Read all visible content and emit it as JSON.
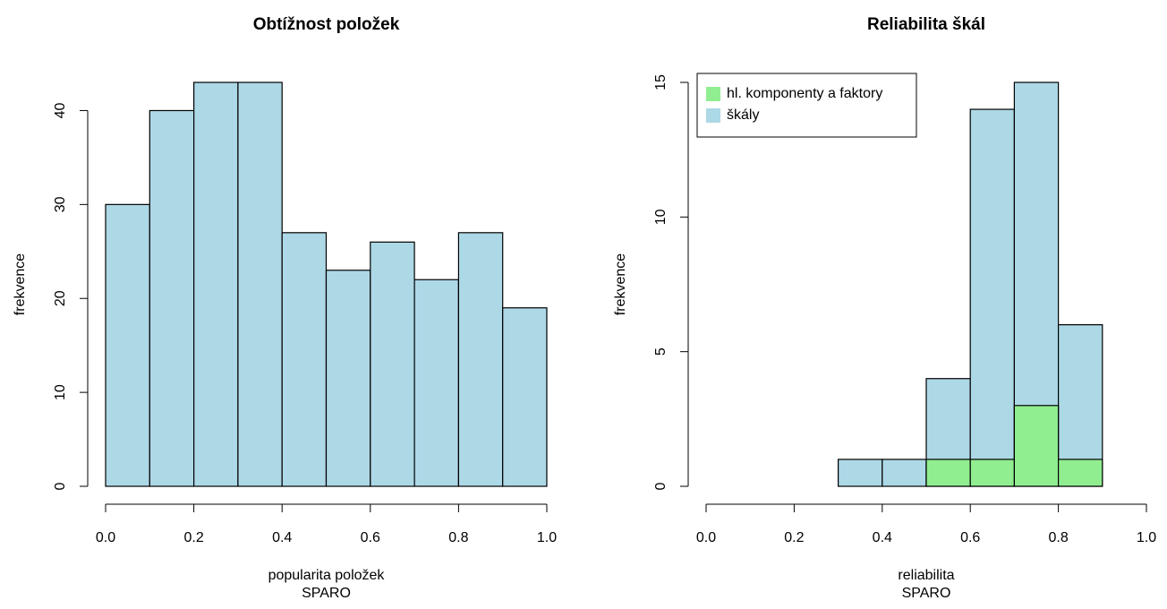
{
  "chart_data": [
    {
      "type": "histogram",
      "title": "Obtížnost položek",
      "xlabel": "popularita položek",
      "subtitle": "SPARO",
      "ylabel": "frekvence",
      "bins": [
        0,
        0.1,
        0.2,
        0.3,
        0.4,
        0.5,
        0.6,
        0.7,
        0.8,
        0.9,
        1.0
      ],
      "series": [
        {
          "name": null,
          "color": "#add8e6",
          "values": [
            30,
            40,
            43,
            43,
            27,
            23,
            26,
            22,
            27,
            19
          ]
        }
      ],
      "xlim": [
        0,
        1
      ],
      "xticks": [
        {
          "value": 0,
          "label": "0.0"
        },
        0.2,
        0.4,
        0.6,
        0.8,
        {
          "value": 1,
          "label": "1.0"
        }
      ],
      "ylim": [
        0,
        43
      ],
      "yticks": [
        0,
        10,
        20,
        30,
        40
      ],
      "legend": null
    },
    {
      "type": "histogram",
      "title": "Reliabilita škál",
      "xlabel": "reliabilita",
      "subtitle": "SPARO",
      "ylabel": "frekvence",
      "bins": [
        0.3,
        0.4,
        0.5,
        0.6,
        0.7,
        0.8,
        0.9
      ],
      "series": [
        {
          "name": "škály",
          "color": "#add8e6",
          "values": [
            1,
            1,
            4,
            14,
            15,
            6
          ]
        },
        {
          "name": "hl. komponenty a faktory",
          "color": "#90ee90",
          "values": [
            0,
            0,
            1,
            1,
            3,
            1
          ]
        }
      ],
      "xlim": [
        0,
        1
      ],
      "xticks": [
        {
          "value": 0,
          "label": "0.0"
        },
        0.2,
        0.4,
        0.6,
        0.8,
        {
          "value": 1,
          "label": "1.0"
        }
      ],
      "ylim": [
        0,
        15
      ],
      "yticks": [
        0,
        5,
        10,
        15
      ],
      "legend": "top-left"
    }
  ]
}
